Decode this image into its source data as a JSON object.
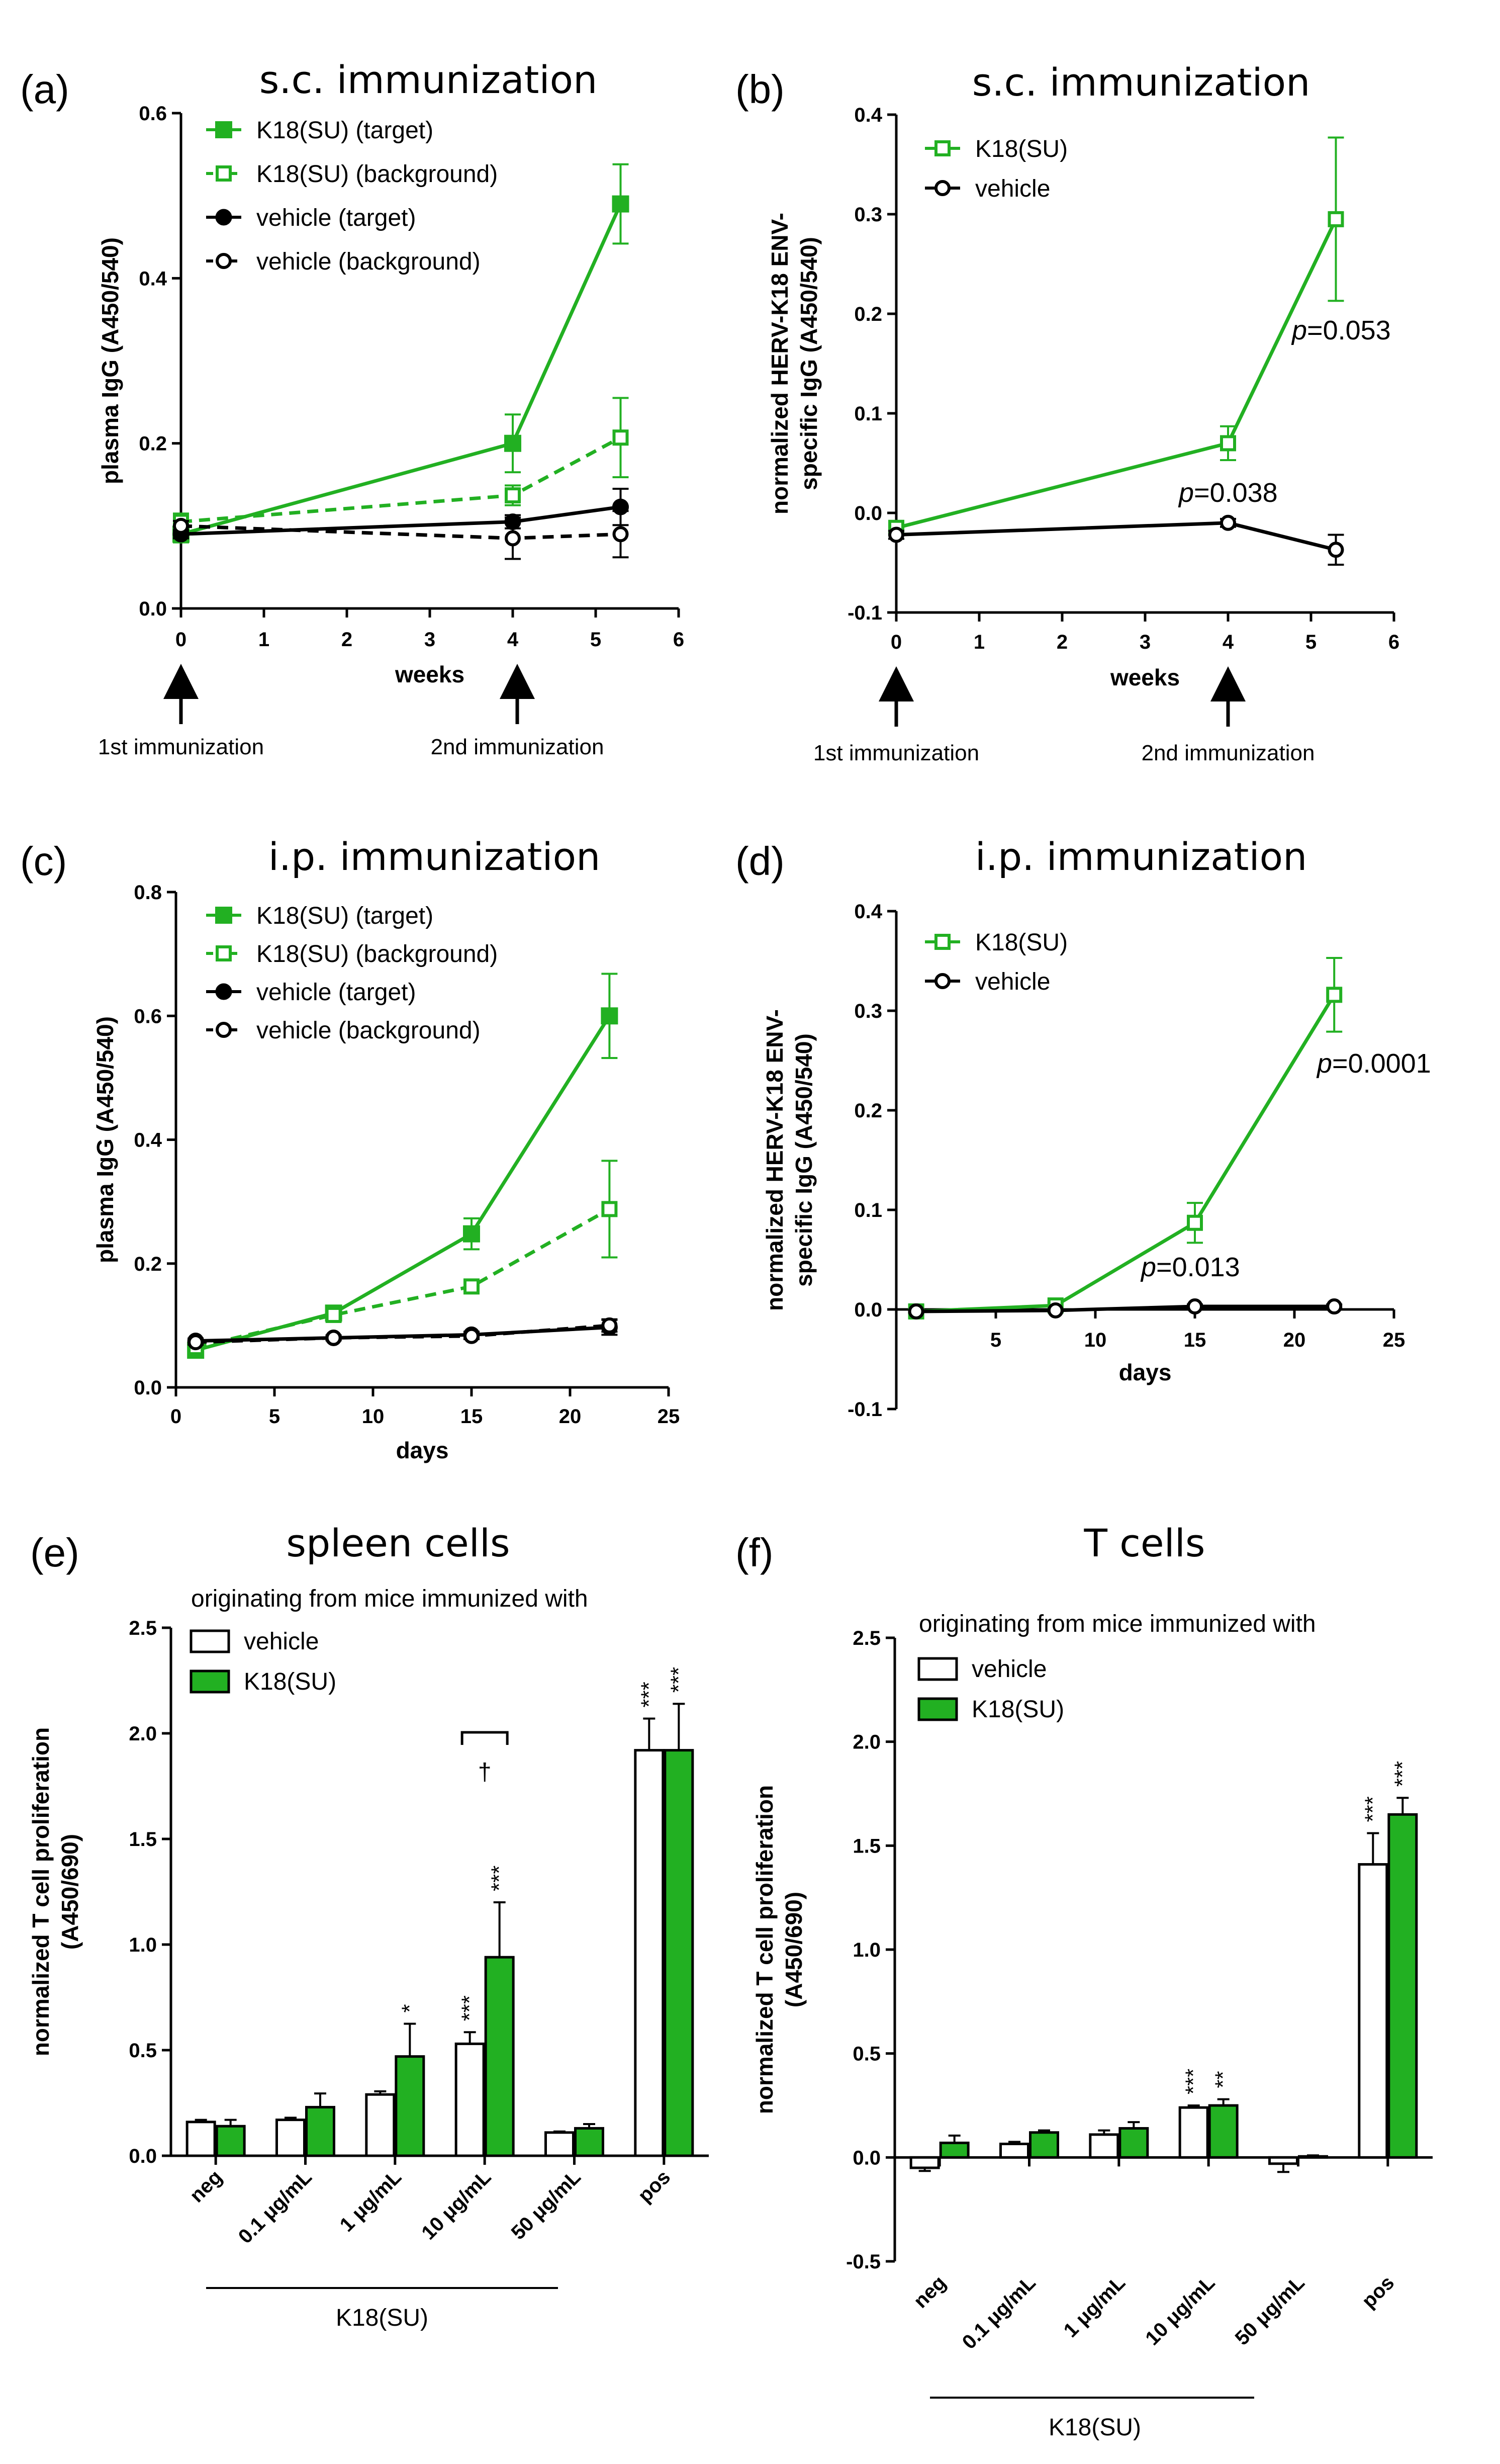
{
  "colors": {
    "green": "#22b022",
    "black": "#000000"
  },
  "chart_data": [
    {
      "id": "a",
      "panel": "(a)",
      "type": "line",
      "title": "s.c. immunization",
      "xlabel": "weeks",
      "ylabel": "plasma IgG (A450/540)",
      "xlim": [
        0,
        6
      ],
      "ylim": [
        0,
        0.6
      ],
      "xticks": [
        "0",
        "1",
        "2",
        "3",
        "4",
        "5",
        "6"
      ],
      "yticks": [
        "0.0",
        "0.2",
        "0.4",
        "0.6"
      ],
      "annotations": [
        "1st immunization",
        "2nd immunization"
      ],
      "series": [
        {
          "name": "K18(SU) (target)",
          "color": "#22b022",
          "dashed": false,
          "marker": "square-filled",
          "x": [
            0,
            4,
            5.3
          ],
          "y": [
            0.09,
            0.2,
            0.49
          ],
          "err": [
            0.01,
            0.035,
            0.048
          ]
        },
        {
          "name": "K18(SU) (background)",
          "color": "#22b022",
          "dashed": true,
          "marker": "square-open",
          "x": [
            0,
            4,
            5.3
          ],
          "y": [
            0.105,
            0.137,
            0.207
          ],
          "err": [
            0.01,
            0.012,
            0.048
          ]
        },
        {
          "name": "vehicle (target)",
          "color": "#000000",
          "dashed": false,
          "marker": "circle-filled",
          "x": [
            0,
            4,
            5.3
          ],
          "y": [
            0.09,
            0.105,
            0.123
          ],
          "err": [
            0.005,
            0.008,
            0.022
          ]
        },
        {
          "name": "vehicle (background)",
          "color": "#000000",
          "dashed": true,
          "marker": "circle-open",
          "x": [
            0,
            4,
            5.3
          ],
          "y": [
            0.1,
            0.085,
            0.09
          ],
          "err": [
            0.006,
            0.025,
            0.028
          ]
        }
      ]
    },
    {
      "id": "b",
      "panel": "(b)",
      "type": "line",
      "title": "s.c. immunization",
      "xlabel": "weeks",
      "ylabel": "normalized HERV-K18 ENV-specific IgG (A450/540)",
      "xlim": [
        0,
        6
      ],
      "ylim": [
        -0.1,
        0.4
      ],
      "xticks": [
        "0",
        "1",
        "2",
        "3",
        "4",
        "5",
        "6"
      ],
      "yticks": [
        "-0.1",
        "0.0",
        "0.1",
        "0.2",
        "0.3",
        "0.4"
      ],
      "annotations": [
        "1st immunization",
        "2nd immunization",
        "p=0.038",
        "p=0.053"
      ],
      "series": [
        {
          "name": "K18(SU)",
          "color": "#22b022",
          "dashed": false,
          "marker": "square-open",
          "x": [
            0,
            4,
            5.3
          ],
          "y": [
            -0.015,
            0.07,
            0.295
          ],
          "err": [
            0.005,
            0.017,
            0.082
          ]
        },
        {
          "name": "vehicle",
          "color": "#000000",
          "dashed": false,
          "marker": "circle-open",
          "x": [
            0,
            4,
            5.3
          ],
          "y": [
            -0.022,
            -0.01,
            -0.037
          ],
          "err": [
            0.004,
            0.004,
            0.015
          ]
        }
      ]
    },
    {
      "id": "c",
      "panel": "(c)",
      "type": "line",
      "title": "i.p. immunization",
      "xlabel": "days",
      "ylabel": "plasma IgG (A450/540)",
      "xlim": [
        0,
        25
      ],
      "ylim": [
        0,
        0.8
      ],
      "xticks": [
        "0",
        "5",
        "10",
        "15",
        "20",
        "25"
      ],
      "yticks": [
        "0.0",
        "0.2",
        "0.4",
        "0.6",
        "0.8"
      ],
      "annotations": [],
      "series": [
        {
          "name": "K18(SU) (target)",
          "color": "#22b022",
          "dashed": false,
          "marker": "square-filled",
          "x": [
            1,
            8,
            15,
            22
          ],
          "y": [
            0.06,
            0.12,
            0.248,
            0.6
          ],
          "err": [
            0.005,
            0.01,
            0.025,
            0.068
          ]
        },
        {
          "name": "K18(SU) (background)",
          "color": "#22b022",
          "dashed": true,
          "marker": "square-open",
          "x": [
            1,
            8,
            15,
            22
          ],
          "y": [
            0.065,
            0.117,
            0.163,
            0.288
          ],
          "err": [
            0.005,
            0.008,
            0.01,
            0.078
          ]
        },
        {
          "name": "vehicle (target)",
          "color": "#000000",
          "dashed": false,
          "marker": "circle-filled",
          "x": [
            1,
            8,
            15,
            22
          ],
          "y": [
            0.075,
            0.08,
            0.085,
            0.097
          ],
          "err": [
            0.004,
            0.004,
            0.005,
            0.012
          ]
        },
        {
          "name": "vehicle (background)",
          "color": "#000000",
          "dashed": true,
          "marker": "circle-open",
          "x": [
            1,
            8,
            15,
            22
          ],
          "y": [
            0.073,
            0.08,
            0.083,
            0.1
          ],
          "err": [
            0.004,
            0.004,
            0.005,
            0.01
          ]
        }
      ]
    },
    {
      "id": "d",
      "panel": "(d)",
      "type": "line",
      "title": "i.p. immunization",
      "xlabel": "days",
      "ylabel": "normalized HERV-K18 ENV-specific IgG (A450/540)",
      "xlim": [
        0,
        25
      ],
      "ylim": [
        -0.1,
        0.4
      ],
      "xticks": [
        "5",
        "10",
        "15",
        "20",
        "25"
      ],
      "yticks": [
        "-0.1",
        "0.0",
        "0.1",
        "0.2",
        "0.3",
        "0.4"
      ],
      "annotations": [
        "p=0.013",
        "p=0.0001"
      ],
      "series": [
        {
          "name": "K18(SU)",
          "color": "#22b022",
          "dashed": false,
          "marker": "square-open",
          "x": [
            1,
            8,
            15,
            22
          ],
          "y": [
            -0.002,
            0.004,
            0.087,
            0.316
          ],
          "err": [
            0.002,
            0.003,
            0.02,
            0.037
          ]
        },
        {
          "name": "vehicle",
          "color": "#000000",
          "dashed": false,
          "marker": "circle-open",
          "x": [
            1,
            8,
            15,
            22
          ],
          "y": [
            -0.002,
            -0.001,
            0.003,
            0.003
          ],
          "err": [
            0.001,
            0.001,
            0.002,
            0.002
          ]
        }
      ]
    },
    {
      "id": "e",
      "panel": "(e)",
      "type": "bar",
      "title": "spleen cells",
      "subtitle": "originating from mice immunized with",
      "ylabel": "normalized T cell proliferation (A450/690)",
      "ylim": [
        0,
        2.5
      ],
      "yticks": [
        "0.0",
        "0.5",
        "1.0",
        "1.5",
        "2.0",
        "2.5"
      ],
      "categories": [
        "neg",
        "0.1 μg/mL",
        "1 μg/mL",
        "10 μg/mL",
        "50 μg/mL",
        "pos"
      ],
      "group_label": "K18(SU)",
      "dagger": "†",
      "series": [
        {
          "name": "vehicle",
          "fill": "#ffffff",
          "values": [
            0.16,
            0.17,
            0.29,
            0.53,
            0.11,
            1.92
          ],
          "err": [
            0.01,
            0.01,
            0.015,
            0.055,
            0.005,
            0.15
          ],
          "stars": [
            "",
            "",
            "",
            "***",
            "",
            "***"
          ]
        },
        {
          "name": "K18(SU)",
          "fill": "#22b022",
          "values": [
            0.14,
            0.23,
            0.47,
            0.94,
            0.13,
            1.92
          ],
          "err": [
            0.03,
            0.065,
            0.155,
            0.26,
            0.02,
            0.22
          ],
          "stars": [
            "",
            "",
            "*",
            "***",
            "",
            "***"
          ]
        }
      ]
    },
    {
      "id": "f",
      "panel": "(f)",
      "type": "bar",
      "title": "T cells",
      "subtitle": "originating from mice immunized with",
      "ylabel": "normalized T cell proliferation (A450/690)",
      "ylim": [
        -0.5,
        2.5
      ],
      "yticks": [
        "-0.5",
        "0.0",
        "0.5",
        "1.0",
        "1.5",
        "2.0",
        "2.5"
      ],
      "categories": [
        "neg",
        "0.1 μg/mL",
        "1 μg/mL",
        "10 μg/mL",
        "50 μg/mL",
        "pos"
      ],
      "group_label": "K18(SU)",
      "series": [
        {
          "name": "vehicle",
          "fill": "#ffffff",
          "values": [
            -0.05,
            0.065,
            0.11,
            0.24,
            -0.03,
            1.41
          ],
          "err": [
            0.015,
            0.01,
            0.02,
            0.01,
            0.04,
            0.15
          ],
          "stars": [
            "",
            "",
            "",
            "***",
            "",
            "***"
          ]
        },
        {
          "name": "K18(SU)",
          "fill": "#22b022",
          "values": [
            0.07,
            0.12,
            0.14,
            0.25,
            0.005,
            1.65
          ],
          "err": [
            0.035,
            0.01,
            0.03,
            0.03,
            0.005,
            0.08
          ],
          "stars": [
            "",
            "",
            "",
            "**",
            "",
            "***"
          ]
        }
      ]
    }
  ]
}
